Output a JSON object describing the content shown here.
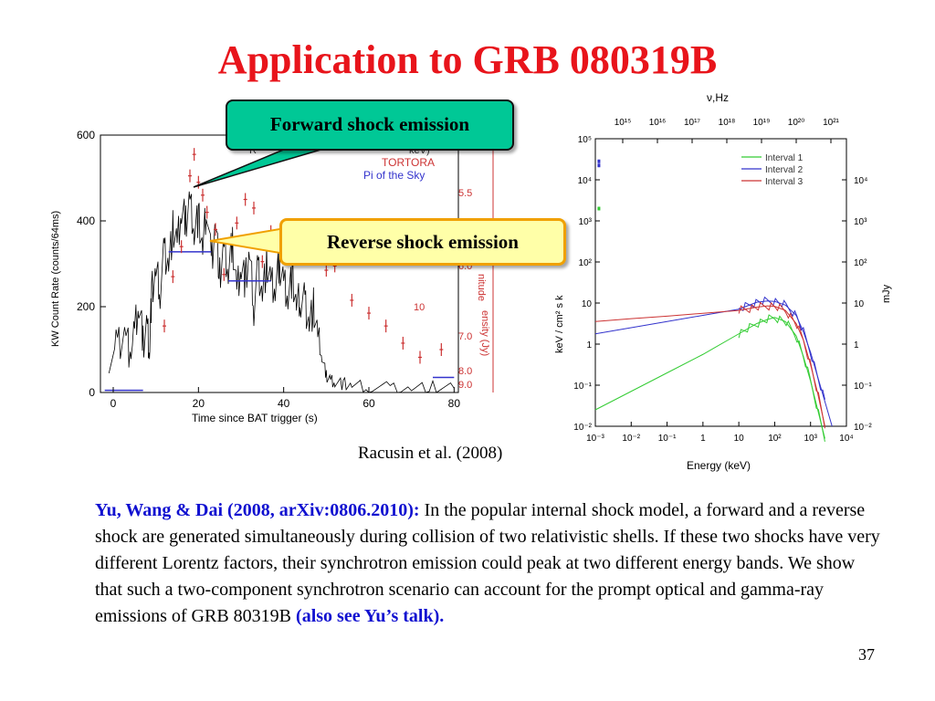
{
  "slide": {
    "title": "Application to GRB 080319B",
    "callout_forward": "Forward shock emission",
    "callout_reverse": "Reverse shock emission",
    "citation": "Racusin et al. (2008)",
    "page_number": "37",
    "body_author": "Yu, Wang & Dai (2008, arXiv:0806.2010):",
    "body_text": " In the popular internal shock model, a forward and a reverse shock are generated simultaneously during collision of two relativistic shells. If these two shocks have very different Lorentz factors, their synchrotron emission could peak at two different energy bands. We show that such a two-component synchrotron scenario can account for the prompt optical and gamma-ray emissions of GRB 80319B ",
    "body_see": "(also see Yu’s talk)."
  },
  "chart_data": [
    {
      "type": "line",
      "xlabel": "Time since BAT trigger (s)",
      "ylabel": "KW Count Rate (counts/64ms)",
      "ylabel_right": "ensity (Jy)",
      "ylabel_right2": "nitude",
      "xlim": [
        -3,
        81
      ],
      "ylim": [
        0,
        600
      ],
      "x_ticks": [
        "0",
        "20",
        "40",
        "60",
        "80"
      ],
      "y_ticks": [
        "0",
        "200",
        "400",
        "600"
      ],
      "right_ticks": [
        "10"
      ],
      "right2_ticks": [
        "5.5",
        "6.0",
        "7.0",
        "8.0",
        "9.0"
      ],
      "legend": [
        "TORTORA",
        "Pi of the Sky"
      ],
      "legend_partial": "R",
      "legend_partial_right": "keV)",
      "gamma_series": {
        "name": "",
        "x": [
          -1,
          1,
          3,
          4,
          5,
          6,
          7,
          8,
          8.5,
          9,
          10,
          11,
          12,
          13,
          14,
          15,
          16,
          17,
          18,
          19,
          20,
          21,
          22,
          23,
          24,
          25,
          26,
          27,
          28,
          29,
          30,
          31,
          32,
          33,
          34,
          35,
          36,
          37,
          38,
          39,
          40,
          41,
          42,
          43,
          44,
          45,
          46,
          47,
          48,
          49,
          50,
          51,
          52,
          54,
          56,
          60,
          65,
          70,
          75,
          80
        ],
        "y": [
          60,
          110,
          150,
          80,
          140,
          200,
          120,
          160,
          90,
          230,
          280,
          240,
          330,
          300,
          380,
          340,
          420,
          400,
          450,
          380,
          410,
          330,
          440,
          300,
          400,
          270,
          330,
          280,
          350,
          240,
          300,
          260,
          320,
          200,
          290,
          230,
          300,
          250,
          240,
          300,
          260,
          230,
          270,
          200,
          220,
          210,
          160,
          200,
          120,
          80,
          40,
          30,
          25,
          20,
          15,
          12,
          10,
          10,
          12,
          10
        ]
      },
      "red_points": {
        "name": "",
        "x": [
          12,
          14,
          16,
          18,
          19,
          20,
          21,
          22,
          24,
          26,
          29,
          31,
          33,
          35,
          37,
          39,
          41,
          44,
          46,
          48,
          50,
          52,
          56,
          60,
          64,
          68,
          72,
          77
        ],
        "y": [
          155,
          270,
          340,
          505,
          555,
          490,
          460,
          420,
          380,
          275,
          395,
          450,
          430,
          305,
          375,
          365,
          390,
          335,
          315,
          320,
          285,
          295,
          215,
          185,
          155,
          115,
          82,
          100
        ]
      },
      "blue_segments": [
        {
          "x0": -2,
          "x1": 7,
          "y": 5
        },
        {
          "x0": 13,
          "x1": 23,
          "y": 328
        },
        {
          "x0": 27,
          "x1": 37,
          "y": 260
        },
        {
          "x0": 75,
          "x1": 80,
          "y": 35
        }
      ]
    },
    {
      "type": "line",
      "xlabel": "Energy (keV)",
      "ylabel": "keV / cm² s k",
      "ylabel_right": "mJy",
      "top_axis_label": "ν,Hz",
      "x_ticks_log": [
        "10⁻³",
        "10⁻²",
        "10⁻¹",
        "1",
        "10",
        "10²",
        "10³",
        "10⁴"
      ],
      "y_ticks_log": [
        "10⁻²",
        "10⁻¹",
        "1",
        "10",
        "10²",
        "10³",
        "10⁴",
        "10⁵"
      ],
      "right_ticks_log": [
        "10⁻²",
        "10⁻¹",
        "1",
        "10",
        "10²",
        "10³",
        "10⁴"
      ],
      "top_ticks": [
        "10¹⁵",
        "10¹⁶",
        "10¹⁷",
        "10¹⁸",
        "10¹⁹",
        "10²⁰",
        "10²¹"
      ],
      "xlim_log10": [
        -3,
        4
      ],
      "ylim_log10": [
        -2,
        5
      ],
      "series": [
        {
          "name": "Interval 1",
          "color": "#33cc33",
          "x_log10": [
            -3,
            -2,
            -1,
            0,
            1,
            1.5,
            1.8,
            2.0,
            2.3,
            2.6,
            2.8,
            3.0,
            3.2,
            3.4
          ],
          "y_log10": [
            -1.6,
            -1.15,
            -0.7,
            -0.25,
            0.25,
            0.5,
            0.6,
            0.65,
            0.55,
            0.2,
            -0.3,
            -0.9,
            -1.6,
            -2.3
          ]
        },
        {
          "name": "Interval 2",
          "color": "#3333cc",
          "x_log10": [
            -3,
            -2,
            -1,
            0,
            1,
            1.5,
            1.8,
            2.0,
            2.3,
            2.6,
            2.8,
            3.0,
            3.2,
            3.4,
            3.6
          ],
          "y_log10": [
            0.25,
            0.4,
            0.55,
            0.7,
            0.85,
            1.02,
            1.05,
            1.04,
            0.95,
            0.7,
            0.3,
            -0.2,
            -0.8,
            -1.4,
            -2.0
          ]
        },
        {
          "name": "Interval 3",
          "color": "#cc3333",
          "x_log10": [
            -3,
            -2,
            -1,
            0,
            1,
            1.5,
            1.8,
            2.0,
            2.3,
            2.6,
            2.8,
            3.0,
            3.2,
            3.4
          ],
          "y_log10": [
            0.55,
            0.62,
            0.68,
            0.75,
            0.82,
            0.9,
            0.93,
            0.92,
            0.82,
            0.5,
            0.1,
            -0.5,
            -1.2,
            -2.0
          ]
        }
      ],
      "optical_points": [
        {
          "x_log10": -2.9,
          "y_log10": 3.3,
          "color": "#33cc33"
        },
        {
          "x_log10": -2.9,
          "y_log10": 4.35,
          "color": "#3333cc"
        },
        {
          "x_log10": -2.9,
          "y_log10": 4.45,
          "color": "#3333cc"
        }
      ]
    }
  ]
}
